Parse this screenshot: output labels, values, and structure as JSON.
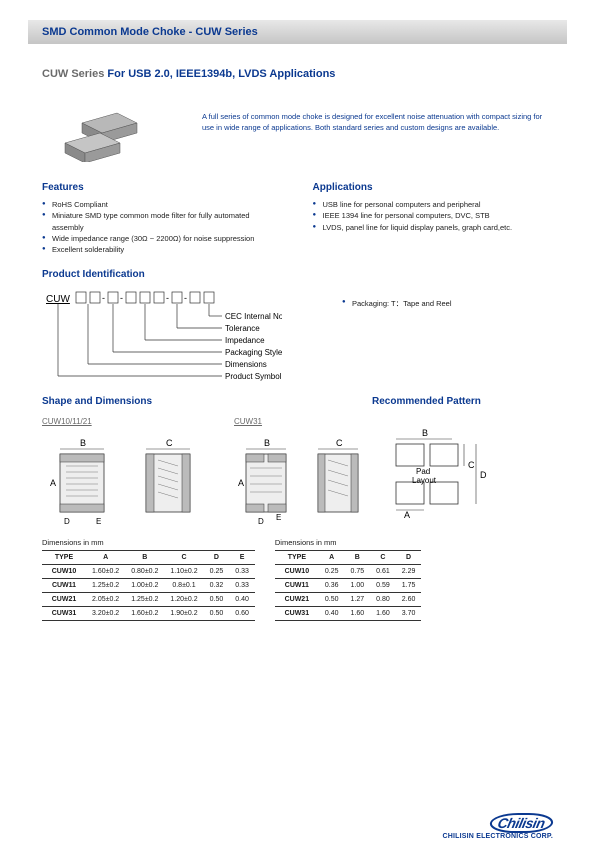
{
  "header": {
    "title": "SMD Common Mode Choke - CUW Series"
  },
  "subtitle": {
    "series": "CUW Series",
    "apps": " For USB 2.0, IEEE1394b, LVDS Applications"
  },
  "intro": "A full series of common mode choke is designed for excellent noise attenuation with compact sizing for use in wide range of applications. Both standard series and custom designs are available.",
  "features": {
    "heading": "Features",
    "items": [
      "RoHS Compliant",
      "Miniature SMD type common mode filter for fully automated assembly",
      "Wide impedance range (30Ω ~ 2200Ω) for noise suppression",
      "Excellent solderability"
    ]
  },
  "applications": {
    "heading": "Applications",
    "items": [
      "USB line for personal computers and peripheral",
      "IEEE 1394 line for personal computers, DVC, STB",
      "LVDS, panel line for liquid display panels, graph card,etc."
    ]
  },
  "prodId": {
    "heading": "Product Identification",
    "symbol": "CUW",
    "labels": [
      "CEC Internal No.",
      "Tolerance",
      "Impedance",
      "Packaging Style",
      "Dimensions",
      "Product Symbol"
    ],
    "packaging": "Packaging: T：Tape and Reel"
  },
  "shape": {
    "heading": "Shape and Dimensions",
    "variant1": "CUW10/11/21",
    "variant2": "CUW31"
  },
  "pattern": {
    "heading": "Recommended Pattern",
    "label": "Pad Layout"
  },
  "dimTable1": {
    "caption": "Dimensions in mm",
    "columns": [
      "TYPE",
      "A",
      "B",
      "C",
      "D",
      "E"
    ],
    "rows": [
      [
        "CUW10",
        "1.60±0.2",
        "0.80±0.2",
        "1.10±0.2",
        "0.25",
        "0.33"
      ],
      [
        "CUW11",
        "1.25±0.2",
        "1.00±0.2",
        "0.8±0.1",
        "0.32",
        "0.33"
      ],
      [
        "CUW21",
        "2.05±0.2",
        "1.25±0.2",
        "1.20±0.2",
        "0.50",
        "0.40"
      ],
      [
        "CUW31",
        "3.20±0.2",
        "1.60±0.2",
        "1.90±0.2",
        "0.50",
        "0.60"
      ]
    ]
  },
  "dimTable2": {
    "caption": "Dimensions in mm",
    "columns": [
      "TYPE",
      "A",
      "B",
      "C",
      "D"
    ],
    "rows": [
      [
        "CUW10",
        "0.25",
        "0.75",
        "0.61",
        "2.29"
      ],
      [
        "CUW11",
        "0.36",
        "1.00",
        "0.59",
        "1.75"
      ],
      [
        "CUW21",
        "0.50",
        "1.27",
        "0.80",
        "2.60"
      ],
      [
        "CUW31",
        "0.40",
        "1.60",
        "1.60",
        "3.70"
      ]
    ]
  },
  "footer": {
    "logo": "Chilisin",
    "corp": "CHILISIN ELECTRONICS CORP."
  },
  "colors": {
    "brand": "#0b3990",
    "grey": "#6a6a6a",
    "headerGrad1": "#e8e8e8",
    "headerGrad2": "#c5c5c5"
  }
}
